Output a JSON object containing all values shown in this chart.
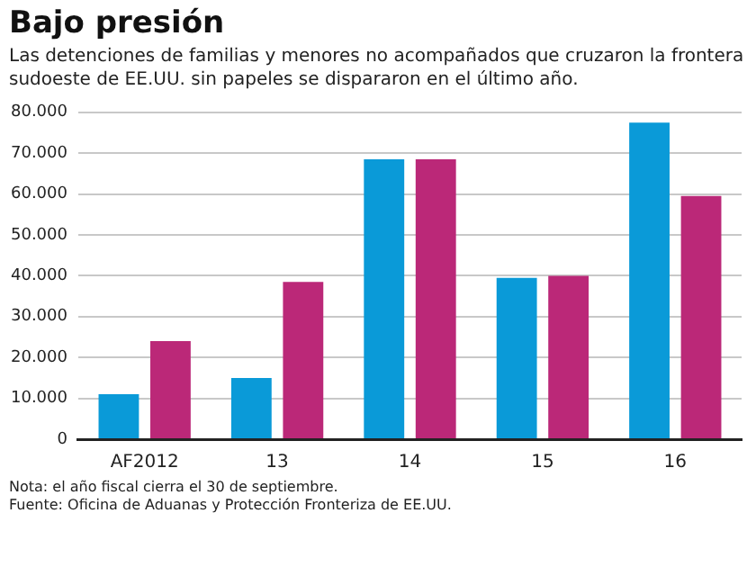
{
  "chart_data": {
    "type": "bar",
    "title": "Bajo presión",
    "subtitle": "Las detenciones de familias y menores no acompañados que cruzaron la frontera sudoeste de EE.UU. sin papeles se dispararon en el último año.",
    "categories": [
      "AF2012",
      "13",
      "14",
      "15",
      "16"
    ],
    "series": [
      {
        "color": "#0a9ad8",
        "values": [
          11000,
          15000,
          68500,
          39500,
          77500
        ]
      },
      {
        "color": "#bb2878",
        "values": [
          24000,
          38500,
          68500,
          40000,
          59500
        ]
      }
    ],
    "ylim": [
      0,
      80000
    ],
    "yticks": [
      {
        "value": 0,
        "label": "0"
      },
      {
        "value": 10000,
        "label": "10.000"
      },
      {
        "value": 20000,
        "label": "20.000"
      },
      {
        "value": 30000,
        "label": "30.000"
      },
      {
        "value": 40000,
        "label": "40.000"
      },
      {
        "value": 50000,
        "label": "50.000"
      },
      {
        "value": 60000,
        "label": "60.000"
      },
      {
        "value": 70000,
        "label": "70.000"
      },
      {
        "value": 80000,
        "label": "80.000"
      }
    ],
    "grid": "y",
    "legend": false,
    "annotations": [
      "Nota: el año fiscal cierra el 30 de septiembre.",
      "Fuente: Oficina de Aduanas y Protección Fronteriza de EE.UU."
    ]
  }
}
